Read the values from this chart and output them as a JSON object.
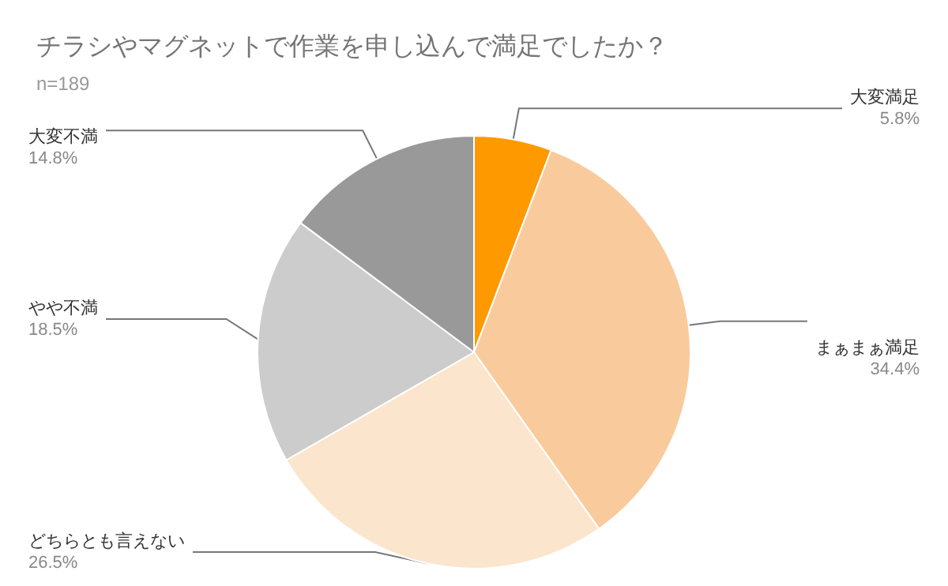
{
  "chart_data": {
    "type": "pie",
    "title": "チラシやマグネットで作業を申し込んで満足でしたか？",
    "subtitle": "n=189",
    "categories": [
      "大変満足",
      "まぁまぁ満足",
      "どちらとも言えない",
      "やや不満",
      "大変不満"
    ],
    "values": [
      5.8,
      34.4,
      26.5,
      18.5,
      14.8
    ],
    "value_labels": [
      "5.8%",
      "34.4%",
      "26.5%",
      "18.5%",
      "14.8%"
    ],
    "colors": [
      "#ff9900",
      "#f9cb9c",
      "#fce5cd",
      "#cccccc",
      "#999999"
    ],
    "legend": false
  }
}
